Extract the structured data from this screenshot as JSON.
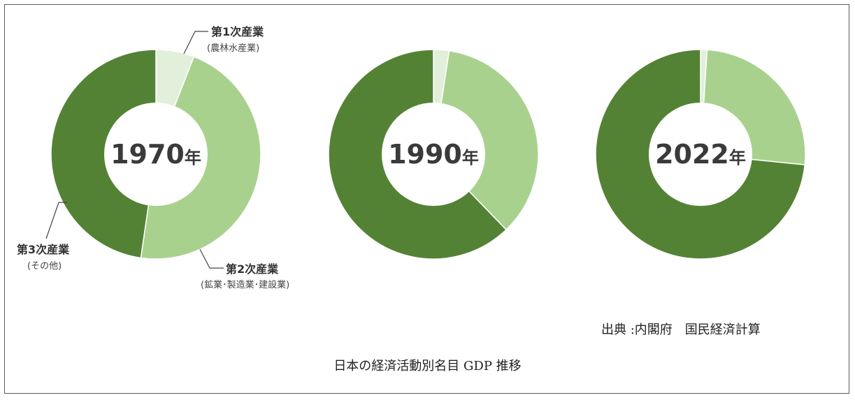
{
  "chart_data": [
    {
      "type": "pie",
      "title": "1970年",
      "categories": [
        "第1次産業",
        "第2次産業",
        "第3次産業"
      ],
      "values": [
        5.9,
        46.4,
        47.7
      ],
      "colors": [
        "#e2efda",
        "#a9d18e",
        "#548235"
      ]
    },
    {
      "type": "pie",
      "title": "1990年",
      "categories": [
        "第1次産業",
        "第2次産業",
        "第3次産業"
      ],
      "values": [
        2.4,
        35.4,
        62.2
      ],
      "colors": [
        "#e2efda",
        "#a9d18e",
        "#548235"
      ]
    },
    {
      "type": "pie",
      "title": "2022年",
      "categories": [
        "第1次産業",
        "第2次産業",
        "第3次産業"
      ],
      "values": [
        1.0,
        25.6,
        73.4
      ],
      "colors": [
        "#e2efda",
        "#a9d18e",
        "#548235"
      ]
    }
  ],
  "labels": {
    "primary_name": "第1次産業",
    "primary_sub": "(農林水産業)",
    "secondary_name": "第2次産業",
    "secondary_sub": "(鉱業･製造業･建設業)",
    "tertiary_name": "第3次産業",
    "tertiary_sub": "(その他)"
  },
  "year_suffix": "年",
  "years": [
    "1970",
    "1990",
    "2022"
  ],
  "source": "出典 :内閣府　国民経済計算",
  "caption": "日本の経済活動別名目 GDP 推移"
}
